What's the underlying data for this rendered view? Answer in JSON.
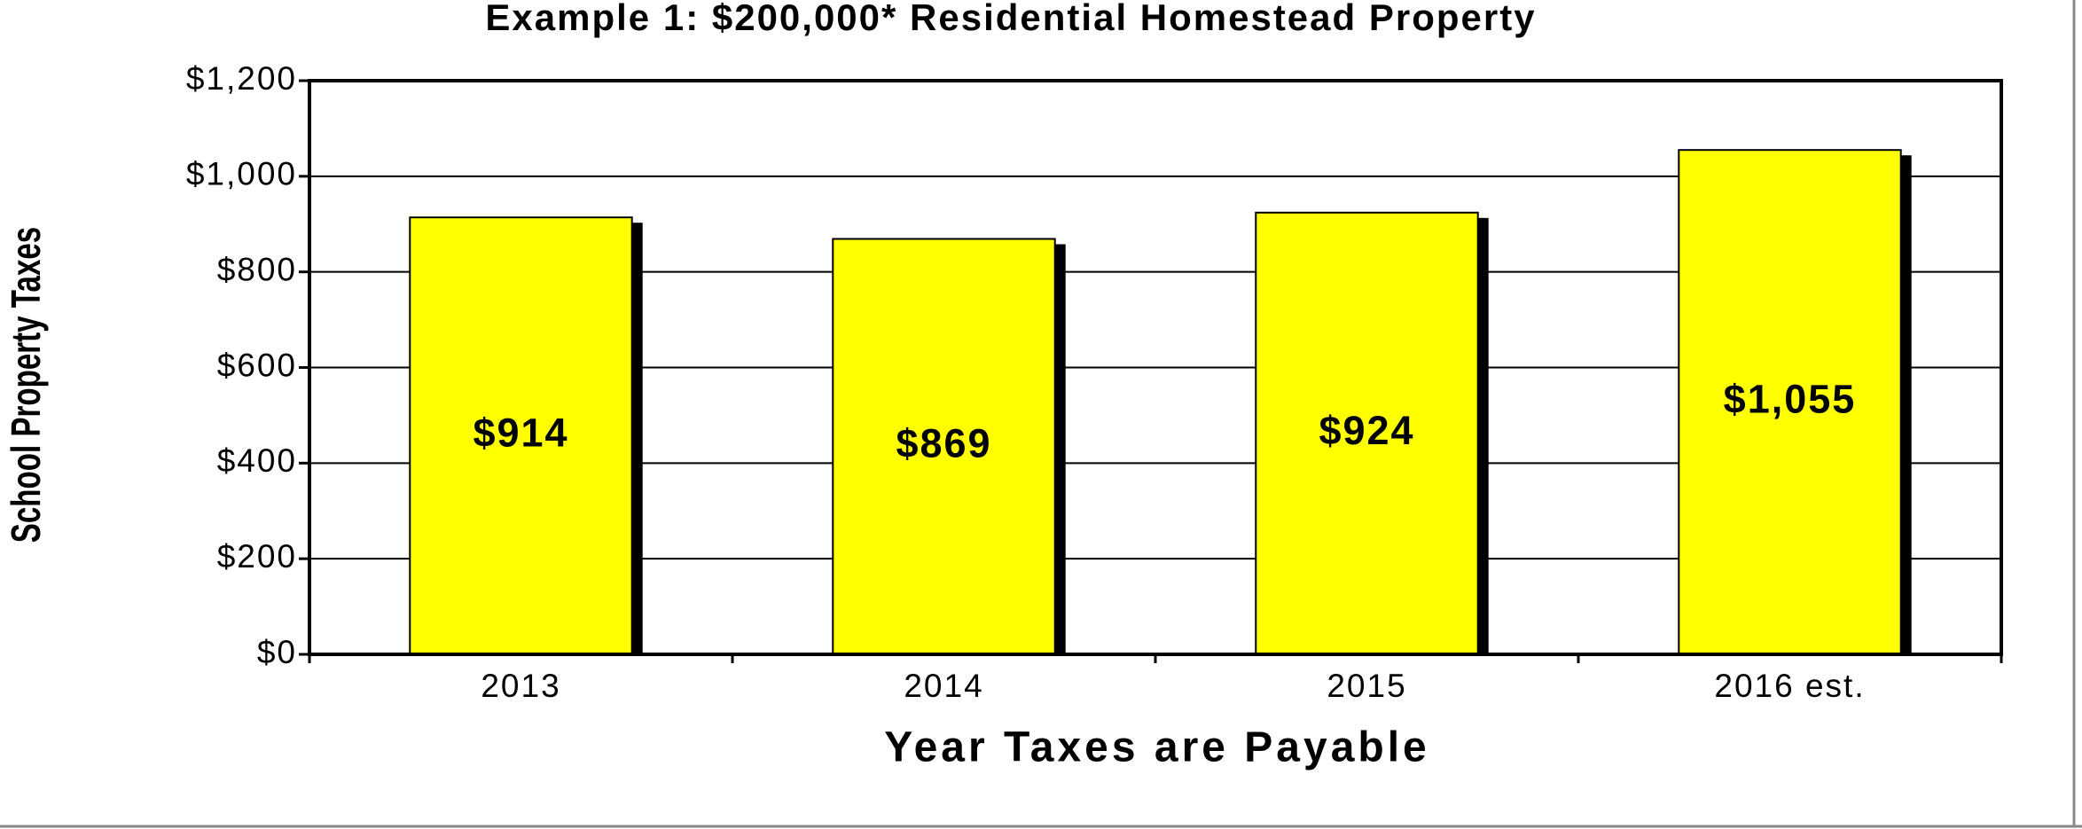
{
  "chart_data": {
    "type": "bar",
    "title": "Example 1:  $200,000* Residential Homestead Property",
    "x_label": "Year Taxes are Payable",
    "y_label": "School Property Taxes",
    "categories": [
      "2013",
      "2014",
      "2015",
      "2016 est."
    ],
    "values": [
      914,
      869,
      924,
      1055
    ],
    "value_labels": [
      "$914",
      "$869",
      "$924",
      "$1,055"
    ],
    "color": "#ffff00",
    "ylim": [
      0,
      1200
    ],
    "yticks": [
      {
        "value": 0,
        "label": "$0"
      },
      {
        "value": 200,
        "label": "$200"
      },
      {
        "value": 400,
        "label": "$400"
      },
      {
        "value": 600,
        "label": "$600"
      },
      {
        "value": 800,
        "label": "$800"
      },
      {
        "value": 1000,
        "label": "$1,000"
      },
      {
        "value": 1200,
        "label": "$1,200"
      }
    ],
    "grid": true
  }
}
